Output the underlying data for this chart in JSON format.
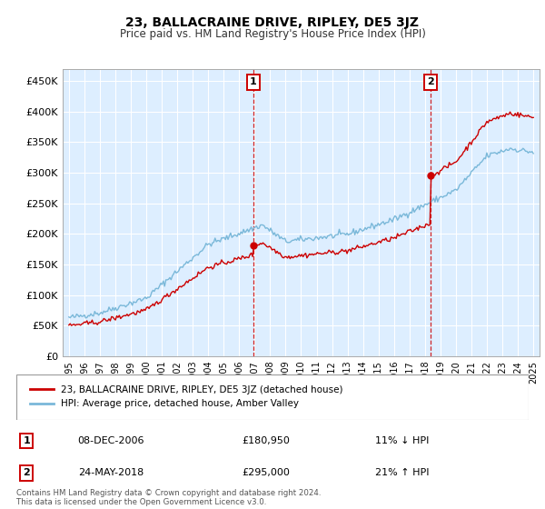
{
  "title": "23, BALLACRAINE DRIVE, RIPLEY, DE5 3JZ",
  "subtitle": "Price paid vs. HM Land Registry's House Price Index (HPI)",
  "plot_bg_color": "#ddeeff",
  "yticks": [
    0,
    50000,
    100000,
    150000,
    200000,
    250000,
    300000,
    350000,
    400000,
    450000
  ],
  "ytick_labels": [
    "£0",
    "£50K",
    "£100K",
    "£150K",
    "£200K",
    "£250K",
    "£300K",
    "£350K",
    "£400K",
    "£450K"
  ],
  "ylim": [
    0,
    470000
  ],
  "hpi_color": "#7ab8d9",
  "price_color": "#cc0000",
  "vline_color": "#cc0000",
  "sale1_year": 2006.92,
  "sale1_price": 180950,
  "sale2_year": 2018.38,
  "sale2_price": 295000,
  "legend_label1": "23, BALLACRAINE DRIVE, RIPLEY, DE5 3JZ (detached house)",
  "legend_label2": "HPI: Average price, detached house, Amber Valley",
  "note1_label": "1",
  "note1_date": "08-DEC-2006",
  "note1_price": "£180,950",
  "note1_hpi": "11% ↓ HPI",
  "note2_label": "2",
  "note2_date": "24-MAY-2018",
  "note2_price": "£295,000",
  "note2_hpi": "21% ↑ HPI",
  "footer": "Contains HM Land Registry data © Crown copyright and database right 2024.\nThis data is licensed under the Open Government Licence v3.0."
}
